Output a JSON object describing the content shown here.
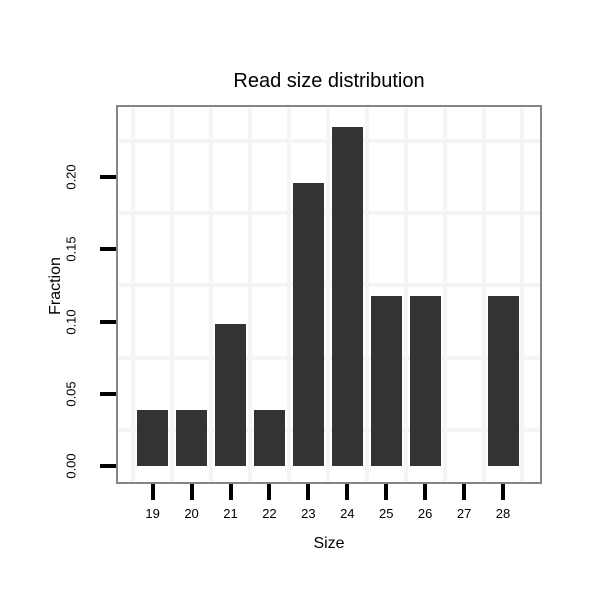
{
  "chart_data": {
    "type": "bar",
    "title": "Read size distribution",
    "xlabel": "Size",
    "ylabel": "Fraction",
    "categories": [
      19,
      20,
      21,
      22,
      23,
      24,
      25,
      26,
      27,
      28
    ],
    "values": [
      0.039,
      0.039,
      0.098,
      0.039,
      0.196,
      0.235,
      0.118,
      0.118,
      0,
      0.118
    ],
    "x_ticks": [
      "19",
      "20",
      "21",
      "22",
      "23",
      "24",
      "25",
      "26",
      "27",
      "28"
    ],
    "y_ticks": [
      {
        "value": 0.0,
        "label": "0.00"
      },
      {
        "value": 0.05,
        "label": "0.05"
      },
      {
        "value": 0.1,
        "label": "0.10"
      },
      {
        "value": 0.15,
        "label": "0.15"
      },
      {
        "value": 0.2,
        "label": "0.20"
      }
    ],
    "x_range": [
      18.11,
      28.95
    ],
    "y_range": [
      -0.0111,
      0.2486
    ],
    "grid_x": [
      18.5,
      19.5,
      20.5,
      21.5,
      22.5,
      23.5,
      24.5,
      25.5,
      26.5,
      27.5,
      28.5
    ],
    "grid_y": [
      0.025,
      0.075,
      0.125,
      0.175,
      0.225
    ],
    "grid": true,
    "legend_position": "none",
    "colors": {
      "bar": "#333333",
      "grid": "#f5f5f5",
      "panel_border": "#858585",
      "tick": "#000000",
      "text": "#000000",
      "background": "#ffffff"
    }
  }
}
